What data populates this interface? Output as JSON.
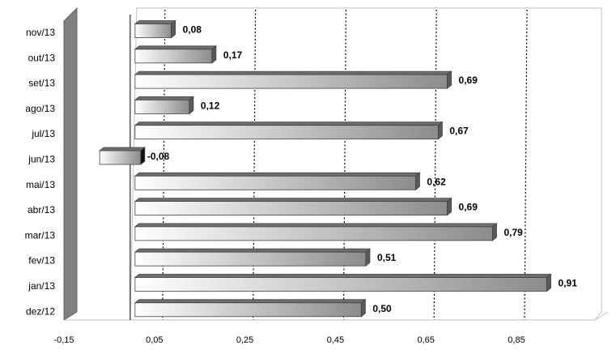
{
  "chart_data": {
    "type": "bar",
    "orientation": "horizontal",
    "categories": [
      "nov/13",
      "out/13",
      "set/13",
      "ago/13",
      "jul/13",
      "jun/13",
      "mai/13",
      "abr/13",
      "mar/13",
      "fev/13",
      "jan/13",
      "dez/12"
    ],
    "values": [
      0.08,
      0.17,
      0.69,
      0.12,
      0.67,
      -0.08,
      0.62,
      0.69,
      0.79,
      0.51,
      0.91,
      0.5
    ],
    "data_labels": [
      "0,08",
      "0,17",
      "0,69",
      "0,12",
      "0,67",
      "-0,08",
      "0,62",
      "0,69",
      "0,79",
      "0,51",
      "0,91",
      "0,50"
    ],
    "x_ticks": [
      -0.15,
      0.05,
      0.25,
      0.45,
      0.65,
      0.85
    ],
    "x_tick_labels": [
      "-0,15",
      "0,05",
      "0,25",
      "0,45",
      "0,65",
      "0,85"
    ],
    "xlim": [
      -0.15,
      1.05
    ],
    "grid": "vertical-dotted",
    "legend": "none",
    "style": "3d",
    "colors": {
      "bar_light": "#ffffff",
      "bar_dark": "#8c8c8c",
      "bar_edge": "#404040",
      "side_wall": "#808080",
      "gridline": "#000000"
    }
  }
}
